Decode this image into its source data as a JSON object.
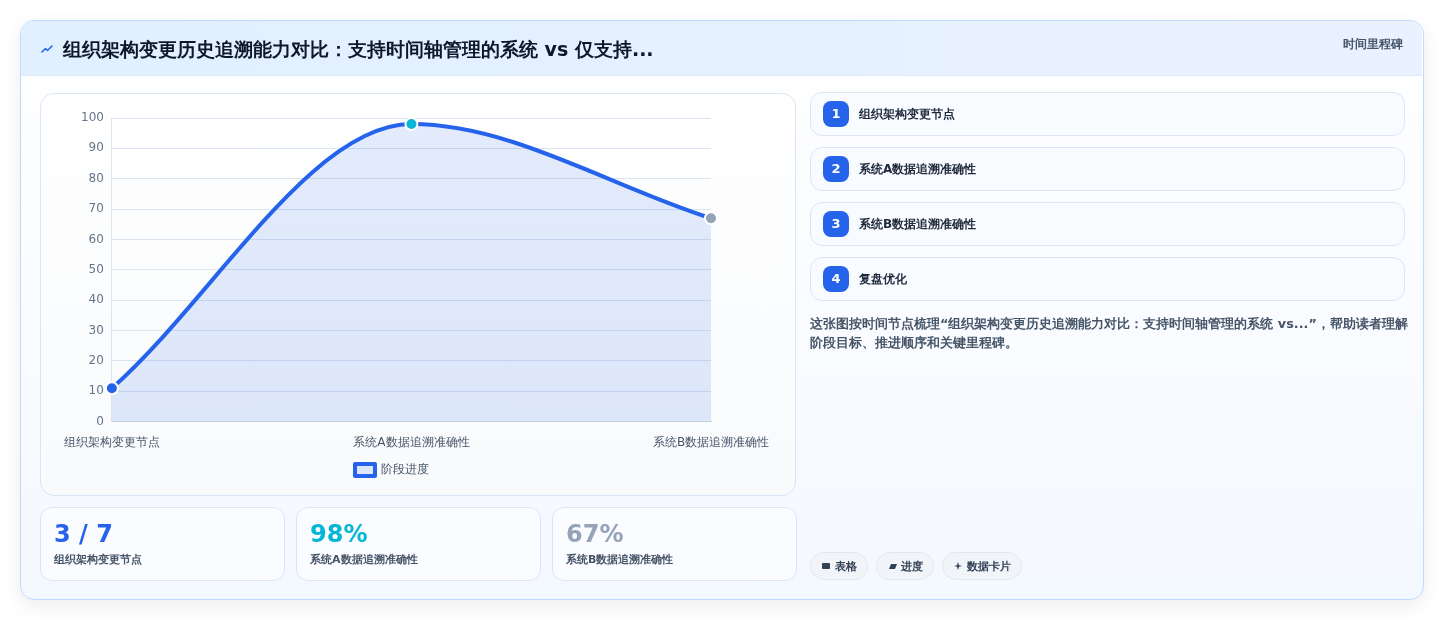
{
  "chart_data": [
    {
      "type": "area",
      "title": "组织架构变更历史追溯能力对比：支持时间轴管理的系统 vs 仅支持...",
      "categories": [
        "组织架构变更节点",
        "系统A数据追溯准确性",
        "系统B数据追溯准确性"
      ],
      "series": [
        {
          "name": "阶段进度",
          "color": "#2563eb",
          "colors": [
            "#2563eb",
            "#06b6d4",
            "#94a3b8"
          ],
          "values": [
            11,
            98,
            67
          ]
        }
      ],
      "ylim": [
        0,
        100
      ],
      "yticks": [
        0,
        10,
        20,
        30,
        40,
        50,
        60,
        70,
        80,
        90,
        100
      ],
      "grid": "y",
      "legend": "bottom",
      "marker": "circle"
    },
    {
      "type": "other",
      "annotations": [
        "3 / 7",
        "组织架构变更节点",
        "98%",
        "系统A数据追溯准确性",
        "67%",
        "系统B数据追溯准确性"
      ],
      "colors": [
        "#2563eb",
        "#06b6d4",
        "#94a3b8"
      ]
    },
    {
      "type": "other",
      "annotations": [
        "1",
        "组织架构变更节点"
      ]
    },
    {
      "type": "other",
      "annotations": [
        "2",
        "系统A数据追溯准确性"
      ]
    },
    {
      "type": "other",
      "annotations": [
        "3",
        "系统B数据追溯准确性"
      ]
    },
    {
      "type": "other",
      "annotations": [
        "4",
        "复盘优化"
      ]
    },
    {
      "type": "other",
      "annotations": [
        "这张图按时间节点梳理“组织架构变更历史追溯能力对比：支持时间轴管理的系统 vs...”，帮助读者理解阶段目标、推进顺序和关键里程碑。",
        "表格",
        "进度",
        "数据卡片"
      ]
    },
    {
      "type": "other",
      "annotations": [
        "时间里程碑"
      ]
    }
  ]
}
